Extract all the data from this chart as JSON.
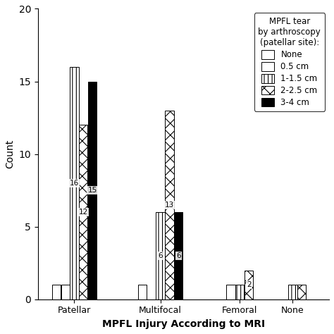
{
  "categories": [
    "Patellar",
    "Multifocal",
    "Femoral",
    "None"
  ],
  "series": [
    {
      "label": "None",
      "values": [
        1,
        1,
        0,
        0
      ]
    },
    {
      "label": "0.5 cm",
      "values": [
        1,
        0,
        1,
        0
      ]
    },
    {
      "label": "1-1.5 cm",
      "values": [
        16,
        6,
        1,
        1
      ]
    },
    {
      "label": "2-2.5 cm",
      "values": [
        12,
        13,
        2,
        1
      ]
    },
    {
      "label": "3-4 cm",
      "values": [
        15,
        6,
        0,
        0
      ]
    }
  ],
  "bar_labels": {
    "Patellar": [
      null,
      null,
      "16",
      "12",
      "15"
    ],
    "Multifocal": [
      null,
      null,
      "6",
      "13",
      "6"
    ],
    "Femoral": [
      null,
      null,
      null,
      "2",
      null
    ],
    "None": [
      null,
      null,
      null,
      null,
      null
    ]
  },
  "ylim": [
    0,
    20
  ],
  "yticks": [
    0,
    5,
    10,
    15,
    20
  ],
  "ylabel": "Count",
  "xlabel": "MPFL Injury According to MRI",
  "legend_title": "MPFL tear\nby arthroscopy\n(patellar site):",
  "bar_width": 0.13,
  "group_centers": [
    0.5,
    1.8,
    3.1,
    4.0
  ]
}
